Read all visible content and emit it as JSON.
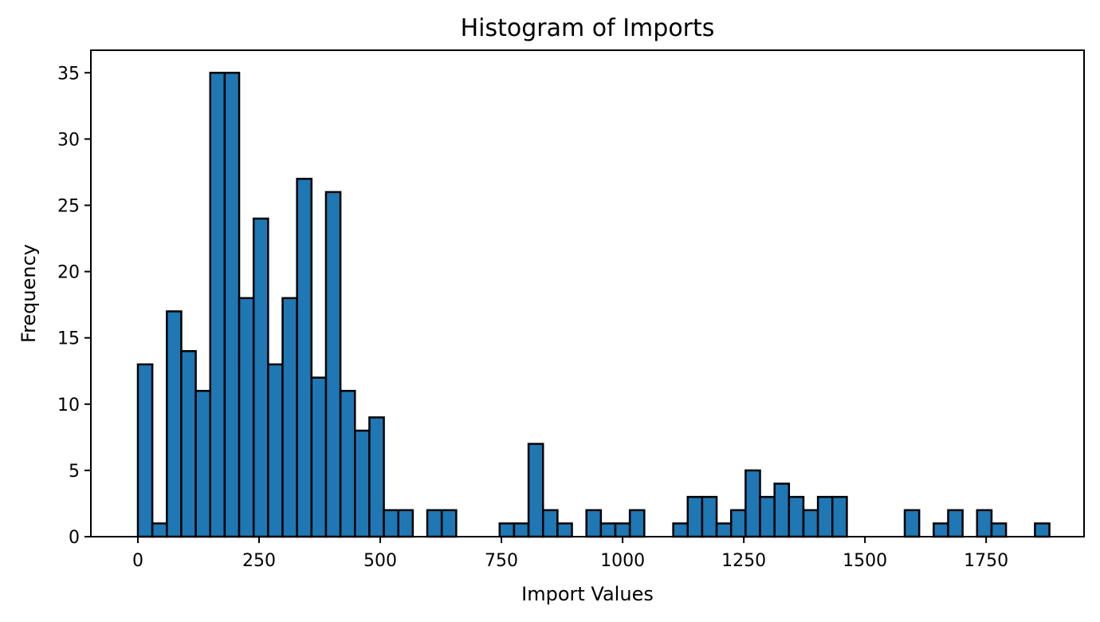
{
  "chart_data": {
    "type": "bar",
    "title": "Histogram of Imports",
    "xlabel": "Import Values",
    "ylabel": "Frequency",
    "xlim": [
      -97,
      1952
    ],
    "ylim": [
      0,
      36.7
    ],
    "x_ticks": [
      0,
      250,
      500,
      750,
      1000,
      1250,
      1500,
      1750
    ],
    "y_ticks": [
      0,
      5,
      10,
      15,
      20,
      25,
      30,
      35
    ],
    "bin_width": 29.85,
    "bin_start": 0,
    "bar_color": "#1f77b4",
    "edge_color": "#000000",
    "grid": false,
    "frequencies": [
      13,
      1,
      17,
      14,
      11,
      35,
      35,
      18,
      24,
      13,
      18,
      27,
      12,
      26,
      11,
      8,
      9,
      2,
      2,
      0,
      2,
      2,
      0,
      0,
      0,
      1,
      1,
      7,
      2,
      1,
      0,
      2,
      1,
      1,
      2,
      0,
      0,
      1,
      3,
      3,
      1,
      2,
      5,
      3,
      4,
      3,
      2,
      3,
      3,
      0,
      0,
      0,
      0,
      2,
      0,
      1,
      2,
      0,
      2,
      1,
      0,
      0,
      1
    ]
  }
}
